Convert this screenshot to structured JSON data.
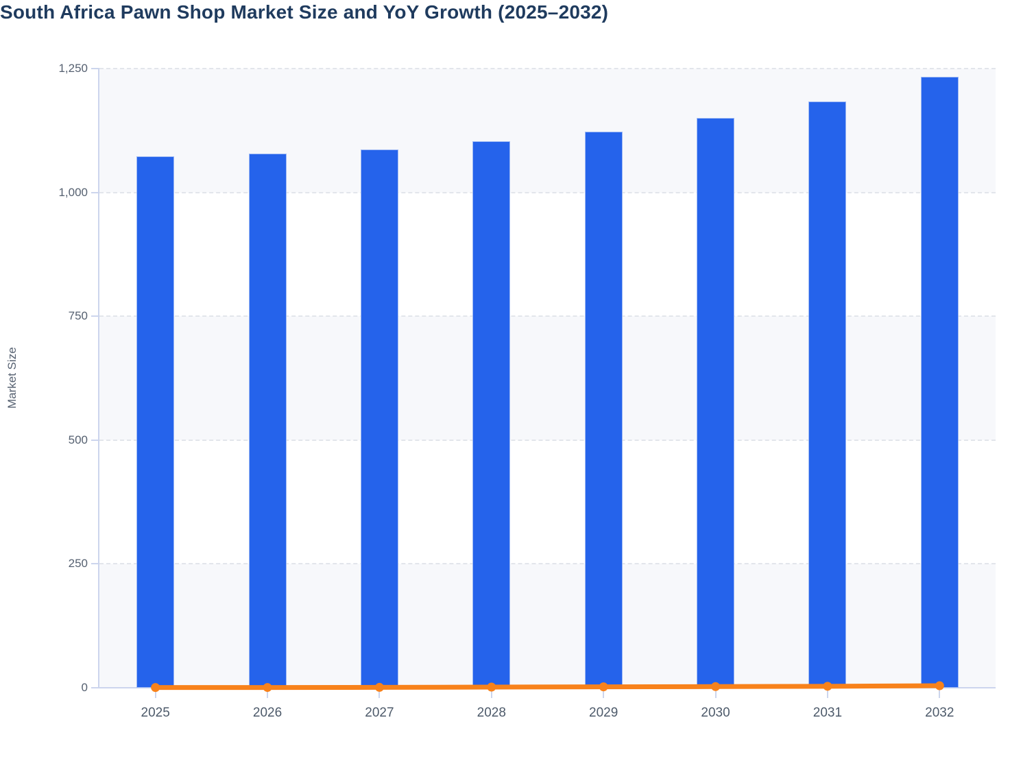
{
  "chart_data": {
    "type": "bar",
    "title": "South Africa Pawn Shop Market Size and YoY Growth (2025–2032)",
    "ylabel": "Market Size",
    "xlabel": "",
    "categories": [
      "2025",
      "2026",
      "2027",
      "2028",
      "2029",
      "2030",
      "2031",
      "2032"
    ],
    "series": [
      {
        "name": "Market Size",
        "type": "bar",
        "values": [
          1073,
          1078,
          1087,
          1103,
          1123,
          1151,
          1184,
          1233
        ]
      },
      {
        "name": "YoY Growth",
        "type": "line",
        "unit": "%",
        "values": [
          0.5,
          0.6,
          0.8,
          1.4,
          1.9,
          2.4,
          3.0,
          4.1
        ],
        "note": "plotted on the same axis as Market Size, so it renders flat at ~0"
      }
    ],
    "ylim": [
      0,
      1250
    ],
    "y_ticks": [
      0,
      250,
      500,
      750,
      1000,
      1250
    ],
    "y_tick_labels": [
      "0",
      "250",
      "500",
      "750",
      "1,000",
      "1,250"
    ],
    "grid": "horizontal dashed gridlines with alternating row bands",
    "legend": "none"
  },
  "colors": {
    "bar": "#2563eb",
    "bar_edge": "#9fbaf4",
    "line": "#f8821b",
    "title": "#1f3b5e",
    "axis_text": "#556070",
    "x_label_text": "#4d5a6a",
    "band": "#f7f8fb",
    "grid": "#e2e5eb",
    "axis_line": "#ccd5ed"
  }
}
